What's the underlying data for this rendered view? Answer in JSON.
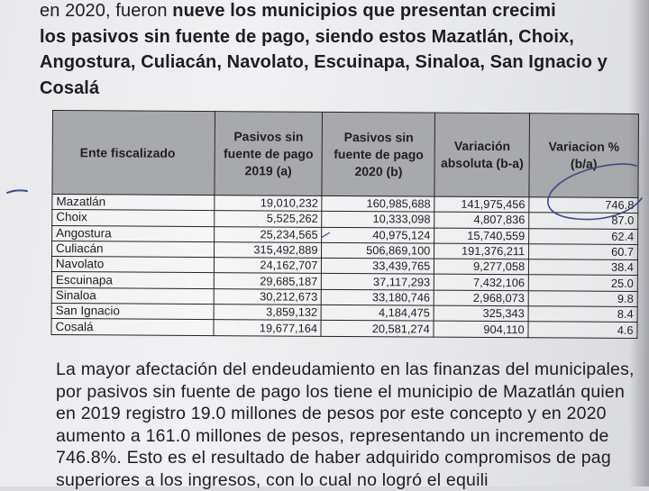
{
  "paragraph_top": {
    "line1_plain": "en 2020, fueron",
    "line1_bold": "nueve los municipios que presentan crecimi",
    "line2": "los pasivos sin fuente de pago, siendo estos Mazatlán, Choix,",
    "line3": "Angostura, Culiacán, Navolato, Escuinapa, Sinaloa, San Ignacio y",
    "line4": "Cosalá"
  },
  "table": {
    "headers": [
      "Ente fiscalizado",
      "Pasivos sin fuente de pago 2019 (a)",
      "Pasivos sin fuente de pago 2020 (b)",
      "Variación absoluta (b-a)",
      "Variacion % (b/a)"
    ],
    "rows": [
      {
        "ente": "Mazatlán",
        "p2019": "19,010,232",
        "p2020": "160,985,688",
        "abs": "141,975,456",
        "pct": "746.8"
      },
      {
        "ente": "Choix",
        "p2019": "5,525,262",
        "p2020": "10,333,098",
        "abs": "4,807,836",
        "pct": "87.0"
      },
      {
        "ente": "Angostura",
        "p2019": "25,234,565",
        "p2020": "40,975,124",
        "abs": "15,740,559",
        "pct": "62.4"
      },
      {
        "ente": "Culiacán",
        "p2019": "315,492,889",
        "p2020": "506,869,100",
        "abs": "191,376,211",
        "pct": "60.7"
      },
      {
        "ente": "Navolato",
        "p2019": "24,162,707",
        "p2020": "33,439,765",
        "abs": "9,277,058",
        "pct": "38.4"
      },
      {
        "ente": "Escuinapa",
        "p2019": "29,685,187",
        "p2020": "37,117,293",
        "abs": "7,432,106",
        "pct": "25.0"
      },
      {
        "ente": "Sinaloa",
        "p2019": "30,212,673",
        "p2020": "33,180,746",
        "abs": "2,968,073",
        "pct": "9.8"
      },
      {
        "ente": "San Ignacio",
        "p2019": "3,859,132",
        "p2020": "4,184,475",
        "abs": "325,343",
        "pct": "8.4"
      },
      {
        "ente": "Cosalá",
        "p2019": "19,677,164",
        "p2020": "20,581,274",
        "abs": "904,110",
        "pct": "4.6"
      }
    ]
  },
  "paragraph_bottom": {
    "lines": [
      "La mayor afectación del endeudamiento en las finanzas del municipales,",
      "por pasivos sin fuente de pago los tiene el municipio de Mazatlán quien",
      "en 2019 registro 19.0 millones de pesos por este concepto y en 2020",
      "aumento a 161.0 millones de pesos, representando un incremento de",
      "746.8%. Esto es el resultado de haber adquirido compromisos de pag",
      "superiores a los ingresos, con lo cual no logró el equili"
    ]
  },
  "annotation_color": "#3a4a8a"
}
